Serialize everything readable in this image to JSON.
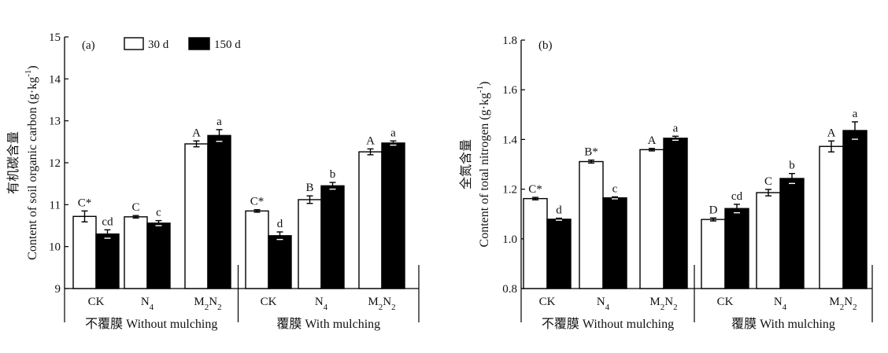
{
  "chart_data": [
    {
      "type": "bar",
      "panel_label": "(a)",
      "ylabel_cn": "有机碳含量",
      "ylabel_en": "Content of soil organic carbon (g·kg",
      "ylabel_unit_sup": "-1",
      "ylabel_close": ")",
      "ylim": [
        9,
        15
      ],
      "yticks": [
        9,
        10,
        11,
        12,
        13,
        14,
        15
      ],
      "legend": [
        "30 d",
        "150 d"
      ],
      "categories": [
        "CK",
        "N4",
        "M2N2",
        "CK",
        "N4",
        "M2N2"
      ],
      "groups": [
        "不覆膜 Without mulching",
        "覆膜 With mulching"
      ],
      "series": [
        {
          "name": "30 d",
          "values": [
            10.72,
            10.71,
            12.45,
            10.85,
            11.12,
            12.26
          ],
          "errors": [
            0.13,
            0.03,
            0.07,
            0.03,
            0.09,
            0.07
          ],
          "labels": [
            "C*",
            "C",
            "A",
            "C*",
            "B",
            "A"
          ]
        },
        {
          "name": "150 d",
          "values": [
            10.3,
            10.56,
            12.65,
            10.26,
            11.45,
            12.47
          ],
          "errors": [
            0.1,
            0.06,
            0.14,
            0.09,
            0.08,
            0.05
          ],
          "labels": [
            "cd",
            "c",
            "a",
            "d",
            "b",
            "a"
          ]
        }
      ]
    },
    {
      "type": "bar",
      "panel_label": "(b)",
      "ylabel_cn": "全氮含量",
      "ylabel_en": "Content of total nitrogen (g·kg",
      "ylabel_unit_sup": "-1",
      "ylabel_close": ")",
      "ylim": [
        0.8,
        1.8
      ],
      "yticks": [
        "0.8",
        "1.0",
        "1.2",
        "1.4",
        "1.6",
        "1.8"
      ],
      "categories": [
        "CK",
        "N4",
        "M2N2",
        "CK",
        "N4",
        "M2N2"
      ],
      "groups": [
        "不覆膜 Without mulching",
        "覆膜 With mulching"
      ],
      "series": [
        {
          "name": "30 d",
          "values": [
            1.162,
            1.311,
            1.359,
            1.078,
            1.186,
            1.372
          ],
          "errors": [
            0.005,
            0.006,
            0.005,
            0.006,
            0.013,
            0.022
          ],
          "labels": [
            "C*",
            "B*",
            "A",
            "D",
            "C",
            "A"
          ]
        },
        {
          "name": "150 d",
          "values": [
            1.079,
            1.165,
            1.405,
            1.122,
            1.243,
            1.436
          ],
          "errors": [
            0.004,
            0.004,
            0.008,
            0.017,
            0.02,
            0.035
          ],
          "labels": [
            "d",
            "c",
            "a",
            "cd",
            "b",
            "a"
          ]
        }
      ]
    }
  ]
}
